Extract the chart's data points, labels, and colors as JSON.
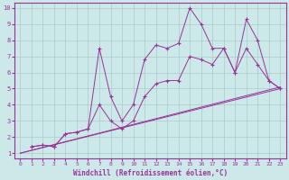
{
  "xlabel": "Windchill (Refroidissement éolien,°C)",
  "bg_color": "#cce8e8",
  "grid_color": "#aacccc",
  "line_color": "#993399",
  "xlim": [
    -0.5,
    23.5
  ],
  "ylim": [
    0.7,
    10.3
  ],
  "xticks": [
    0,
    1,
    2,
    3,
    4,
    5,
    6,
    7,
    8,
    9,
    10,
    11,
    12,
    13,
    14,
    15,
    16,
    17,
    18,
    19,
    20,
    21,
    22,
    23
  ],
  "yticks": [
    1,
    2,
    3,
    4,
    5,
    6,
    7,
    8,
    9,
    10
  ],
  "curves": [
    {
      "x": [
        0,
        23
      ],
      "y": [
        1.0,
        5.0
      ],
      "marker": false
    },
    {
      "x": [
        0,
        23
      ],
      "y": [
        1.0,
        5.1
      ],
      "marker": false
    },
    {
      "x": [
        1,
        2,
        3,
        4,
        5,
        6,
        7,
        8,
        9,
        10,
        11,
        12,
        13,
        14,
        15,
        16,
        17,
        18,
        19,
        20,
        21,
        22,
        23
      ],
      "y": [
        1.4,
        1.5,
        1.4,
        2.2,
        2.3,
        2.5,
        7.5,
        4.5,
        3.0,
        4.0,
        6.8,
        7.7,
        7.5,
        7.8,
        10.0,
        9.0,
        7.5,
        7.5,
        6.0,
        9.3,
        8.0,
        5.5,
        5.0
      ],
      "marker": true
    },
    {
      "x": [
        1,
        2,
        3,
        4,
        5,
        6,
        7,
        8,
        9,
        10,
        11,
        12,
        13,
        14,
        15,
        16,
        17,
        18,
        19,
        20,
        21,
        22,
        23
      ],
      "y": [
        1.4,
        1.5,
        1.4,
        2.2,
        2.3,
        2.5,
        4.0,
        3.0,
        2.5,
        3.0,
        4.5,
        5.3,
        5.5,
        5.5,
        7.0,
        6.8,
        6.5,
        7.5,
        6.0,
        7.5,
        6.5,
        5.5,
        5.0
      ],
      "marker": true
    }
  ]
}
